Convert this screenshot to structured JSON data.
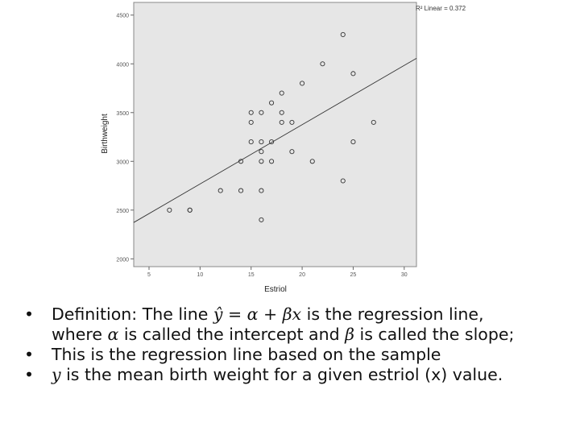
{
  "chart_data": {
    "type": "scatter",
    "xlabel": "Estriol",
    "ylabel": "Birthweight",
    "xlim": [
      3.5,
      31.2
    ],
    "ylim": [
      1920,
      4630
    ],
    "x_ticks": [
      5,
      10,
      15,
      20,
      25,
      30
    ],
    "y_ticks": [
      2000,
      2500,
      3000,
      3500,
      4000,
      4500
    ],
    "x_tick_labels": [
      "5",
      "10",
      "15",
      "20",
      "25",
      "30"
    ],
    "y_tick_labels": [
      "2000",
      "2500",
      "3000",
      "3500",
      "4000",
      "4500"
    ],
    "r2_label": "R² Linear = 0.372",
    "regression_line": {
      "intercept": 2160,
      "slope": 60.8
    },
    "points": [
      {
        "x": 7,
        "y": 2500
      },
      {
        "x": 9,
        "y": 2500
      },
      {
        "x": 9,
        "y": 2500
      },
      {
        "x": 12,
        "y": 2700
      },
      {
        "x": 14,
        "y": 2700
      },
      {
        "x": 14,
        "y": 3000
      },
      {
        "x": 15,
        "y": 3200
      },
      {
        "x": 15,
        "y": 3400
      },
      {
        "x": 15,
        "y": 3500
      },
      {
        "x": 16,
        "y": 2400
      },
      {
        "x": 16,
        "y": 2700
      },
      {
        "x": 16,
        "y": 3000
      },
      {
        "x": 16,
        "y": 3100
      },
      {
        "x": 16,
        "y": 3200
      },
      {
        "x": 16,
        "y": 3500
      },
      {
        "x": 17,
        "y": 3000
      },
      {
        "x": 17,
        "y": 3200
      },
      {
        "x": 17,
        "y": 3600
      },
      {
        "x": 18,
        "y": 3400
      },
      {
        "x": 18,
        "y": 3500
      },
      {
        "x": 18,
        "y": 3700
      },
      {
        "x": 19,
        "y": 3100
      },
      {
        "x": 19,
        "y": 3400
      },
      {
        "x": 20,
        "y": 3800
      },
      {
        "x": 21,
        "y": 3000
      },
      {
        "x": 22,
        "y": 4000
      },
      {
        "x": 24,
        "y": 2800
      },
      {
        "x": 24,
        "y": 4300
      },
      {
        "x": 25,
        "y": 3200
      },
      {
        "x": 25,
        "y": 3900
      },
      {
        "x": 27,
        "y": 3400
      }
    ]
  },
  "bullets": {
    "b1_pre": "Definition: The line ",
    "b1_eq": "ŷ = α + βx",
    "b1_post": " is the regression line,",
    "b1_line2_pre": "where ",
    "b1_alpha": "α",
    "b1_line2_mid": " is called the intercept and ",
    "b1_beta": "β",
    "b1_line2_post": " is called the slope;",
    "b2": "This is the regression line based on the sample",
    "b3_var": "y",
    "b3_text": " is the mean birth weight  for a given estriol (x) value."
  },
  "bullet_char": "•"
}
